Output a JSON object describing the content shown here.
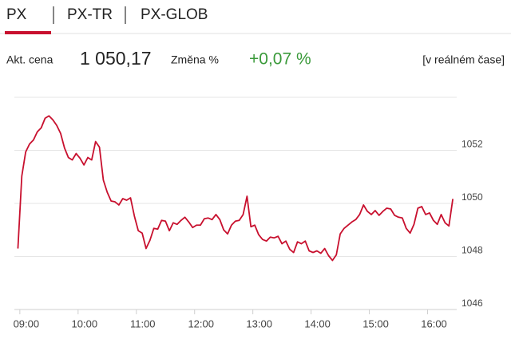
{
  "tabs": [
    "PX",
    "PX-TR",
    "PX-GLOB"
  ],
  "quote": {
    "price_label": "Akt. cena",
    "price": "1 050,17",
    "change_label": "Změna %",
    "change": "+0,07 %",
    "realtime": "[v reálném čase]"
  },
  "chart_data": {
    "type": "line",
    "color": "#c8102e",
    "grid": true,
    "xlim": [
      536,
      990
    ],
    "xticks": [
      {
        "value": 540,
        "label": "09:00"
      },
      {
        "value": 600,
        "label": "10:00"
      },
      {
        "value": 660,
        "label": "11:00"
      },
      {
        "value": 720,
        "label": "12:00"
      },
      {
        "value": 780,
        "label": "13:00"
      },
      {
        "value": 840,
        "label": "14:00"
      },
      {
        "value": 900,
        "label": "15:00"
      },
      {
        "value": 960,
        "label": "16:00"
      }
    ],
    "ylim": [
      1046,
      1054
    ],
    "yticks": [
      1046,
      1048,
      1050,
      1052
    ],
    "x": [
      538,
      542,
      546,
      550,
      554,
      558,
      562,
      566,
      570,
      574,
      578,
      582,
      586,
      590,
      594,
      598,
      602,
      606,
      610,
      614,
      618,
      622,
      626,
      630,
      634,
      638,
      642,
      646,
      650,
      654,
      658,
      662,
      666,
      670,
      674,
      678,
      682,
      686,
      690,
      694,
      698,
      702,
      706,
      710,
      714,
      718,
      722,
      726,
      730,
      734,
      738,
      742,
      746,
      750,
      754,
      758,
      762,
      766,
      770,
      774,
      778,
      782,
      786,
      790,
      794,
      798,
      802,
      806,
      810,
      814,
      818,
      822,
      826,
      830,
      834,
      838,
      842,
      846,
      850,
      854,
      858,
      862,
      866,
      870,
      874,
      878,
      882,
      886,
      890,
      894,
      898,
      902,
      906,
      910,
      914,
      918,
      922,
      926,
      930,
      934,
      938,
      942,
      946,
      950,
      954,
      958,
      962,
      966,
      970,
      974,
      978,
      982,
      986
    ],
    "values": [
      1048.3,
      1051.03,
      1051.94,
      1052.24,
      1052.39,
      1052.7,
      1052.85,
      1053.21,
      1053.3,
      1053.15,
      1052.94,
      1052.64,
      1052.09,
      1051.73,
      1051.64,
      1051.88,
      1051.7,
      1051.45,
      1051.73,
      1051.64,
      1052.33,
      1052.12,
      1050.88,
      1050.42,
      1050.09,
      1050.06,
      1049.94,
      1050.18,
      1050.12,
      1050.21,
      1049.52,
      1048.97,
      1048.88,
      1048.3,
      1048.61,
      1049.06,
      1049.03,
      1049.36,
      1049.33,
      1048.97,
      1049.27,
      1049.21,
      1049.36,
      1049.48,
      1049.3,
      1049.09,
      1049.18,
      1049.18,
      1049.42,
      1049.45,
      1049.39,
      1049.58,
      1049.39,
      1049.0,
      1048.85,
      1049.18,
      1049.33,
      1049.36,
      1049.58,
      1050.27,
      1049.12,
      1049.18,
      1048.82,
      1048.64,
      1048.58,
      1048.73,
      1048.7,
      1048.76,
      1048.48,
      1048.58,
      1048.27,
      1048.15,
      1048.55,
      1048.48,
      1048.58,
      1048.21,
      1048.15,
      1048.21,
      1048.12,
      1048.3,
      1048.03,
      1047.85,
      1048.06,
      1048.85,
      1049.06,
      1049.18,
      1049.3,
      1049.39,
      1049.58,
      1049.94,
      1049.7,
      1049.58,
      1049.73,
      1049.55,
      1049.7,
      1049.82,
      1049.79,
      1049.55,
      1049.48,
      1049.45,
      1049.06,
      1048.88,
      1049.21,
      1049.82,
      1049.88,
      1049.58,
      1049.64,
      1049.36,
      1049.21,
      1049.58,
      1049.27,
      1049.15,
      1050.17
    ]
  }
}
